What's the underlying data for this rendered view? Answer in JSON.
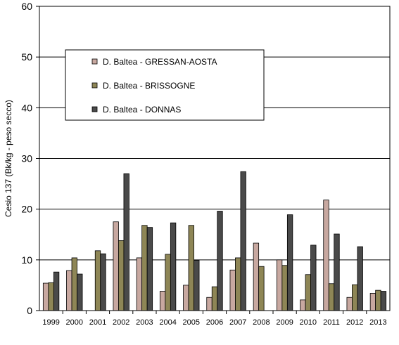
{
  "chart_data": {
    "type": "bar",
    "ylabel": "Cesio 137 (Bk/kg - peso secco)",
    "xlabel": "",
    "ylim": [
      0,
      60
    ],
    "yticks": [
      0,
      10,
      20,
      30,
      40,
      50,
      60
    ],
    "grid": "horizontal",
    "legend_position": "upper-left-inside",
    "categories": [
      "1999",
      "2000",
      "2001",
      "2002",
      "2003",
      "2004",
      "2005",
      "2006",
      "2007",
      "2008",
      "2009",
      "2010",
      "2011",
      "2012",
      "2013"
    ],
    "series": [
      {
        "name": "D. Baltea - GRESSAN-AOSTA",
        "color": "#c8a8a0",
        "values": [
          5.4,
          7.9,
          0,
          17.5,
          10.4,
          3.8,
          5.0,
          2.6,
          8.0,
          13.3,
          10.0,
          2.1,
          21.8,
          2.6,
          3.4
        ]
      },
      {
        "name": "D. Baltea - BRISSOGNE",
        "color": "#8e8656",
        "values": [
          5.5,
          10.4,
          11.8,
          13.8,
          16.8,
          11.1,
          16.8,
          4.7,
          10.4,
          8.7,
          8.9,
          7.1,
          5.3,
          5.1,
          4.0
        ]
      },
      {
        "name": "D. Baltea - DONNAS",
        "color": "#4a4a4a",
        "values": [
          7.6,
          7.2,
          11.2,
          27.0,
          16.4,
          17.3,
          9.9,
          19.6,
          27.4,
          0,
          18.9,
          12.9,
          15.1,
          12.6,
          3.8
        ]
      }
    ]
  }
}
